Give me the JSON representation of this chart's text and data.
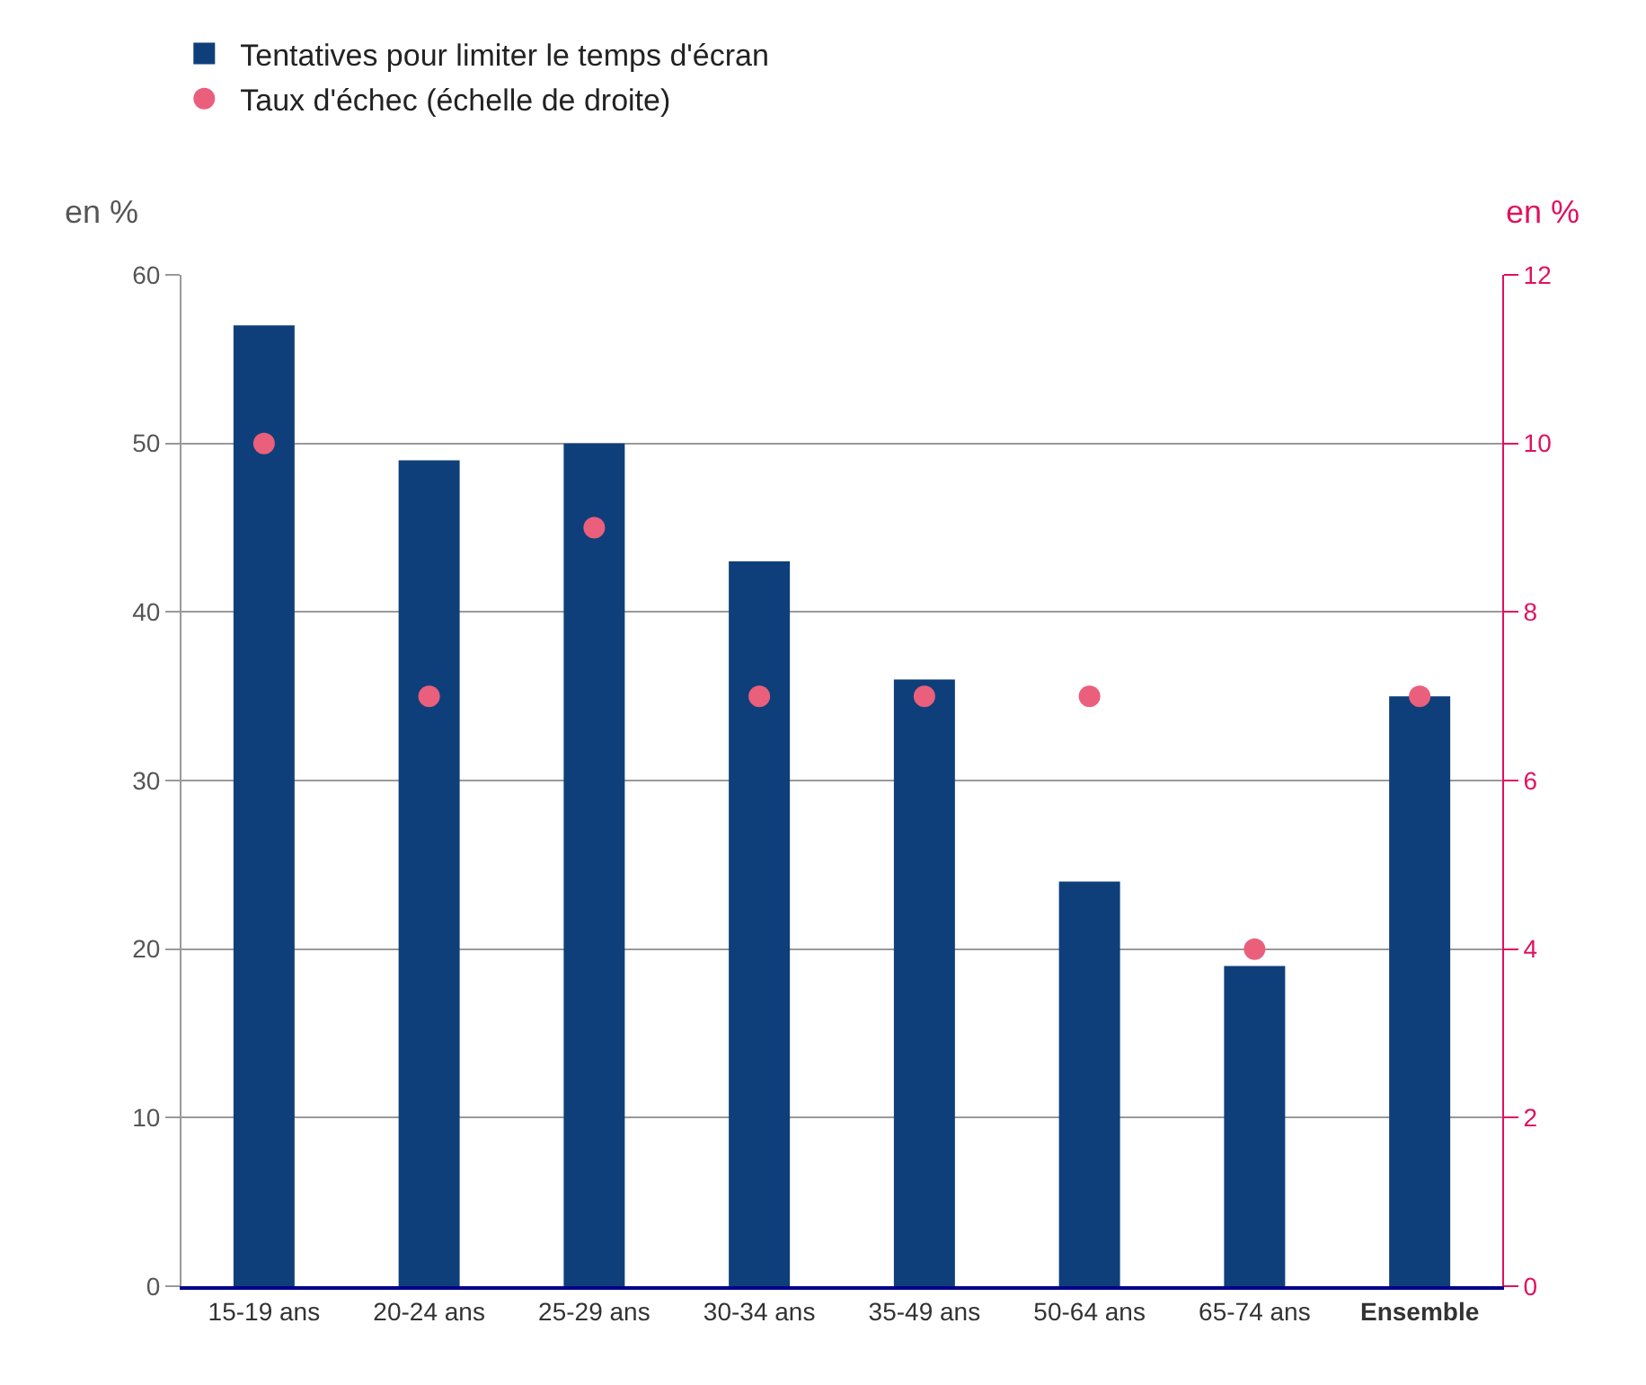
{
  "chart_data": {
    "type": "bar",
    "categories": [
      "15-19 ans",
      "20-24 ans",
      "25-29 ans",
      "30-34 ans",
      "35-49 ans",
      "50-64 ans",
      "65-74 ans",
      "Ensemble"
    ],
    "series": [
      {
        "name": "Tentatives pour limiter le temps d'écran",
        "color": "#0e3f7a",
        "values": [
          57,
          49,
          50,
          43,
          36,
          24,
          19,
          35
        ]
      },
      {
        "name": "Taux d'échec (échelle de droite)",
        "type": "scatter",
        "axis": "y2",
        "color": "#ea5f7c",
        "values": [
          10,
          7,
          9,
          7,
          7,
          7,
          4,
          7
        ]
      }
    ],
    "ylabel": "en %",
    "y2label": "en %",
    "ylim": [
      0,
      60
    ],
    "yticks": [
      0,
      10,
      20,
      30,
      40,
      50,
      60
    ],
    "y2lim": [
      0,
      12
    ],
    "y2ticks": [
      0,
      2,
      4,
      6,
      8,
      10,
      12
    ],
    "grid": "y",
    "legend": "top left",
    "marker": "circle"
  }
}
